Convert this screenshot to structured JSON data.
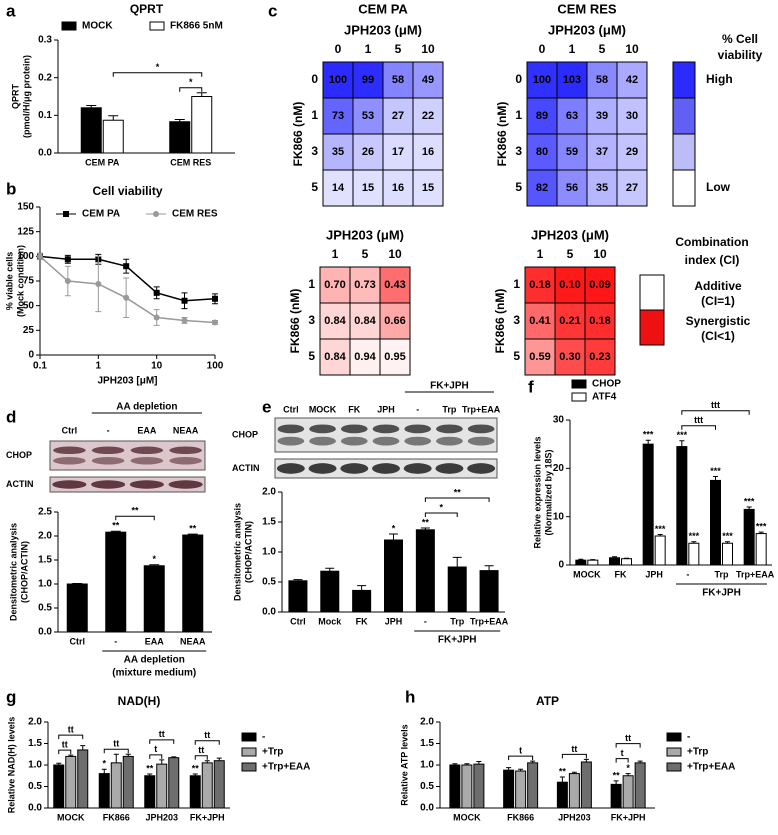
{
  "chart_data": [
    {
      "panel": "a",
      "type": "bar",
      "title": "QPRT",
      "ylabel": [
        "QPRT",
        "(pmol/H/μg protein)"
      ],
      "categories": [
        "CEM PA",
        "CEM RES"
      ],
      "series": [
        {
          "name": "MOCK",
          "color": "#000000",
          "values": [
            0.12,
            0.083
          ],
          "errors": [
            0.006,
            0.006
          ]
        },
        {
          "name": "FK866 5nM",
          "color": "#ffffff",
          "values": [
            0.087,
            0.15
          ],
          "errors": [
            0.012,
            0.01
          ]
        }
      ],
      "ylim": [
        0,
        0.3
      ],
      "yticks": [
        {
          "value": 0,
          "label": "0.0"
        },
        0.1,
        0.2,
        0.3
      ],
      "brackets": [
        {
          "from": [
            0,
            1
          ],
          "to": [
            1,
            1
          ],
          "label": "*"
        },
        {
          "from": [
            1,
            0
          ],
          "to": [
            1,
            1
          ],
          "label": "*"
        }
      ]
    },
    {
      "panel": "b",
      "type": "line",
      "title": "Cell viability",
      "xlabel": "JPH203 [μM]",
      "ylabel": [
        "% viable cells",
        "(Mock condition)"
      ],
      "xlog": true,
      "xlim": [
        0.1,
        100
      ],
      "xticks": [
        0.1,
        1,
        10,
        100
      ],
      "ylim": [
        0,
        150
      ],
      "yticks": [
        0,
        25,
        50,
        75,
        100,
        125,
        150
      ],
      "series": [
        {
          "name": "CEM PA",
          "color": "#000000",
          "marker": "square",
          "x": [
            0.1,
            0.3,
            1,
            3,
            10,
            30,
            100
          ],
          "values": [
            100,
            97,
            97,
            90,
            63,
            55,
            57
          ],
          "errors": [
            3,
            4,
            5,
            7,
            6,
            8,
            5
          ]
        },
        {
          "name": "CEM RES",
          "color": "#999999",
          "marker": "circle",
          "x": [
            0.1,
            0.3,
            1,
            3,
            10,
            30,
            100
          ],
          "values": [
            100,
            75,
            72,
            58,
            38,
            35,
            33
          ],
          "errors": [
            3,
            15,
            28,
            20,
            8,
            3,
            2
          ]
        }
      ]
    },
    {
      "panel": "c",
      "type": "heatmap",
      "heading": "CEM PA",
      "title": "JPH203 (μM)",
      "ylabel": "FK866 (nM)",
      "categories": [
        "0",
        "1",
        "5",
        "10"
      ],
      "rows": [
        "0",
        "1",
        "3",
        "5"
      ],
      "values": [
        [
          100,
          99,
          58,
          49
        ],
        [
          73,
          53,
          27,
          22
        ],
        [
          35,
          26,
          17,
          16
        ],
        [
          14,
          15,
          16,
          15
        ]
      ],
      "color": "#2b2bff"
    },
    {
      "type": "heatmap",
      "heading": "CEM RES",
      "title": "JPH203 (μM)",
      "ylabel": "FK866 (nM)",
      "categories": [
        "0",
        "1",
        "5",
        "10"
      ],
      "rows": [
        "0",
        "1",
        "3",
        "5"
      ],
      "values": [
        [
          100,
          103,
          58,
          42
        ],
        [
          89,
          63,
          39,
          30
        ],
        [
          80,
          59,
          37,
          29
        ],
        [
          82,
          56,
          35,
          27
        ]
      ],
      "color": "#2b2bff"
    },
    {
      "type": "heatmap",
      "title": "JPH203 (μM)",
      "ylabel": "FK866 (nM)",
      "categories": [
        "1",
        "5",
        "10"
      ],
      "rows": [
        "1",
        "3",
        "5"
      ],
      "values": [
        [
          0.7,
          0.73,
          0.43
        ],
        [
          0.84,
          0.84,
          0.66
        ],
        [
          0.84,
          0.94,
          0.95
        ]
      ],
      "value_labels": [
        [
          "0.70",
          "0.73",
          "0.43"
        ],
        [
          "0.84",
          "0.84",
          "0.66"
        ],
        [
          "0.84",
          "0.94",
          "0.95"
        ]
      ],
      "color": "#ff0000",
      "reverse": true
    },
    {
      "type": "heatmap",
      "title": "JPH203 (μM)",
      "ylabel": "FK866 (nM)",
      "categories": [
        "1",
        "5",
        "10"
      ],
      "rows": [
        "1",
        "3",
        "5"
      ],
      "values": [
        [
          0.18,
          0.1,
          0.09
        ],
        [
          0.41,
          0.21,
          0.18
        ],
        [
          0.59,
          0.3,
          0.23
        ]
      ],
      "value_labels": [
        [
          "0.18",
          "0.10",
          "0.09"
        ],
        [
          "0.41",
          "0.21",
          "0.18"
        ],
        [
          "0.59",
          "0.30",
          "0.23"
        ]
      ],
      "color": "#ff0000",
      "reverse": true
    },
    {
      "type": "bar",
      "ylabel": [
        "Densitometric analysis",
        "(CHOP/ACTIN)"
      ],
      "categories": [
        "Ctrl",
        "-",
        "EAA",
        "NEAA"
      ],
      "values": [
        1.0,
        2.08,
        1.38,
        2.02
      ],
      "errors": [
        0.01,
        0.02,
        0.02,
        0.02
      ],
      "stars": [
        null,
        "**",
        "*",
        "**"
      ],
      "color": "#000000",
      "ylim": [
        0,
        2.5
      ],
      "yticks": [
        {
          "value": 0,
          "label": "0.0"
        },
        0.5,
        {
          "value": 1,
          "label": "1.0"
        },
        1.5,
        {
          "value": 2,
          "label": "2.0"
        },
        2.5
      ],
      "groups": [
        {
          "label": "AA depletion",
          "sublabel": "(mixture medium)",
          "from": 1,
          "to": 3
        }
      ],
      "brackets": [
        {
          "from": [
            1,
            0
          ],
          "to": [
            2,
            0
          ],
          "label": "**"
        }
      ]
    },
    {
      "type": "bar",
      "ylabel": [
        "Densitometric analysis",
        "(CHOP/ACTIN)"
      ],
      "categories": [
        "Ctrl",
        "Mock",
        "FK",
        "JPH",
        "-",
        "Trp",
        "Trp+EAA"
      ],
      "values": [
        0.52,
        0.68,
        0.36,
        1.2,
        1.37,
        0.75,
        0.69
      ],
      "errors": [
        0.02,
        0.05,
        0.08,
        0.1,
        0.03,
        0.16,
        0.08
      ],
      "stars": [
        null,
        null,
        null,
        "*",
        "**",
        null,
        null
      ],
      "color": "#000000",
      "ylim": [
        0,
        2
      ],
      "yticks": [
        {
          "value": 0,
          "label": "0.0"
        },
        0.5,
        {
          "value": 1,
          "label": "1.0"
        },
        1.5,
        {
          "value": 2,
          "label": "2.0"
        }
      ],
      "groups": [
        {
          "label": "FK+JPH",
          "from": 4,
          "to": 6
        }
      ],
      "brackets": [
        {
          "from": [
            4,
            0
          ],
          "to": [
            5,
            0
          ],
          "label": "*"
        },
        {
          "from": [
            4,
            0
          ],
          "to": [
            6,
            0
          ],
          "label": "**"
        }
      ]
    },
    {
      "panel": "f",
      "type": "bar",
      "ylabel": [
        "Relative expression levels",
        "(Normalized by 18S)"
      ],
      "categories": [
        "MOCK",
        "FK",
        "JPH",
        "-",
        "Trp",
        "Trp+EAA"
      ],
      "series": [
        {
          "name": "CHOP",
          "color": "#000000",
          "values": [
            1,
            1.5,
            25,
            24.5,
            17.5,
            11.5
          ],
          "errors": [
            0.2,
            0.2,
            0.8,
            1.2,
            0.8,
            0.5
          ],
          "stars": [
            null,
            null,
            "***",
            "***",
            "***",
            "***"
          ]
        },
        {
          "name": "ATF4",
          "color": "#ffffff",
          "values": [
            1,
            1.3,
            6,
            4.5,
            4.5,
            6.5
          ],
          "errors": [
            0.1,
            0.1,
            0.3,
            0.3,
            0.3,
            0.3
          ],
          "stars": [
            null,
            null,
            "***",
            "***",
            "***",
            "***"
          ]
        }
      ],
      "ylim": [
        0,
        30
      ],
      "yticks": [
        0,
        10,
        20,
        30
      ],
      "groups": [
        {
          "label": "FK+JPH",
          "from": 3,
          "to": 5
        }
      ],
      "brackets": [
        {
          "from": [
            3,
            0
          ],
          "to": [
            4,
            0
          ],
          "label": "ttt"
        },
        {
          "from": [
            3,
            0
          ],
          "to": [
            5,
            0
          ],
          "label": "ttt"
        }
      ]
    },
    {
      "panel": "g",
      "type": "bar",
      "title": "NAD(H)",
      "ylabel": [
        "Relative NAD(H) levels"
      ],
      "categories": [
        "MOCK",
        "FK866",
        "JPH203",
        "FK+JPH"
      ],
      "series": [
        {
          "name": "-",
          "color": "#000000",
          "values": [
            1.0,
            0.8,
            0.75,
            0.75
          ],
          "errors": [
            0.04,
            0.1,
            0.04,
            0.04
          ],
          "stars": [
            null,
            "*",
            "**",
            "**"
          ]
        },
        {
          "name": "+Trp",
          "color": "#aaaaaa",
          "values": [
            1.2,
            1.05,
            1.02,
            1.05
          ],
          "errors": [
            0.03,
            0.2,
            0.1,
            0.05
          ]
        },
        {
          "name": "+Trp+EAA",
          "color": "#6e6e6e",
          "values": [
            1.35,
            1.2,
            1.17,
            1.1
          ],
          "errors": [
            0.1,
            0.05,
            0.02,
            0.06
          ]
        }
      ],
      "ylim": [
        0,
        2
      ],
      "yticks": [
        {
          "value": 0,
          "label": "0.0"
        },
        0.5,
        {
          "value": 1,
          "label": "1.0"
        },
        1.5,
        {
          "value": 2,
          "label": "2.0"
        }
      ],
      "brackets": [
        {
          "from": [
            0,
            0
          ],
          "to": [
            0,
            1
          ],
          "label": "tt"
        },
        {
          "from": [
            0,
            0
          ],
          "to": [
            0,
            2
          ],
          "label": "tt"
        },
        {
          "from": [
            1,
            0
          ],
          "to": [
            1,
            2
          ],
          "label": "tt"
        },
        {
          "from": [
            2,
            0
          ],
          "to": [
            2,
            1
          ],
          "label": "t"
        },
        {
          "from": [
            2,
            0
          ],
          "to": [
            2,
            2
          ],
          "label": "tt"
        },
        {
          "from": [
            3,
            0
          ],
          "to": [
            3,
            1
          ],
          "label": "tt"
        },
        {
          "from": [
            3,
            0
          ],
          "to": [
            3,
            2
          ],
          "label": "tt"
        }
      ]
    },
    {
      "panel": "h",
      "type": "bar",
      "title": "ATP",
      "ylabel": [
        "Relative ATP levels"
      ],
      "categories": [
        "MOCK",
        "FK866",
        "JPH203",
        "FK+JPH"
      ],
      "series": [
        {
          "name": "-",
          "color": "#000000",
          "values": [
            1.0,
            0.88,
            0.6,
            0.55
          ],
          "errors": [
            0.03,
            0.06,
            0.12,
            0.08
          ],
          "stars": [
            null,
            null,
            "**",
            "**"
          ]
        },
        {
          "name": "+Trp",
          "color": "#aaaaaa",
          "values": [
            1.0,
            0.86,
            0.8,
            0.75
          ],
          "errors": [
            0.03,
            0.04,
            0.03,
            0.05
          ],
          "stars": [
            null,
            null,
            null,
            "*"
          ]
        },
        {
          "name": "+Trp+EAA",
          "color": "#6e6e6e",
          "values": [
            1.02,
            1.05,
            1.07,
            1.05
          ],
          "errors": [
            0.06,
            0.04,
            0.06,
            0.04
          ]
        }
      ],
      "ylim": [
        0,
        2
      ],
      "yticks": [
        {
          "value": 0,
          "label": "0.0"
        },
        0.5,
        {
          "value": 1,
          "label": "1.0"
        },
        1.5,
        {
          "value": 2,
          "label": "2.0"
        }
      ],
      "brackets": [
        {
          "from": [
            1,
            0
          ],
          "to": [
            1,
            2
          ],
          "label": "t"
        },
        {
          "from": [
            2,
            0
          ],
          "to": [
            2,
            2
          ],
          "label": "tt"
        },
        {
          "from": [
            3,
            0
          ],
          "to": [
            3,
            1
          ],
          "label": "t"
        },
        {
          "from": [
            3,
            0
          ],
          "to": [
            3,
            2
          ],
          "label": "tt"
        }
      ]
    }
  ],
  "blots": [
    {
      "panel": "d",
      "header": "AA depletion",
      "header_from": 1,
      "header_to": 3,
      "lanes": [
        "Ctrl",
        "-",
        "EAA",
        "NEAA"
      ],
      "rows": [
        "CHOP",
        "ACTIN"
      ]
    },
    {
      "panel": "e",
      "header": "FK+JPH",
      "header_from": 4,
      "header_to": 6,
      "lanes": [
        "Ctrl",
        "MOCK",
        "FK",
        "JPH",
        "-",
        "Trp",
        "Trp+EAA"
      ],
      "rows": [
        "CHOP",
        "ACTIN"
      ]
    }
  ],
  "viability_legend": {
    "title": [
      "% Cell",
      "viability"
    ],
    "high": "High",
    "low": "Low"
  },
  "ci_legend": {
    "title": [
      "Combination",
      "index (CI)"
    ],
    "additive": [
      "Additive",
      "(CI=1)"
    ],
    "synergistic": [
      "Synergistic",
      "(CI<1)"
    ]
  }
}
